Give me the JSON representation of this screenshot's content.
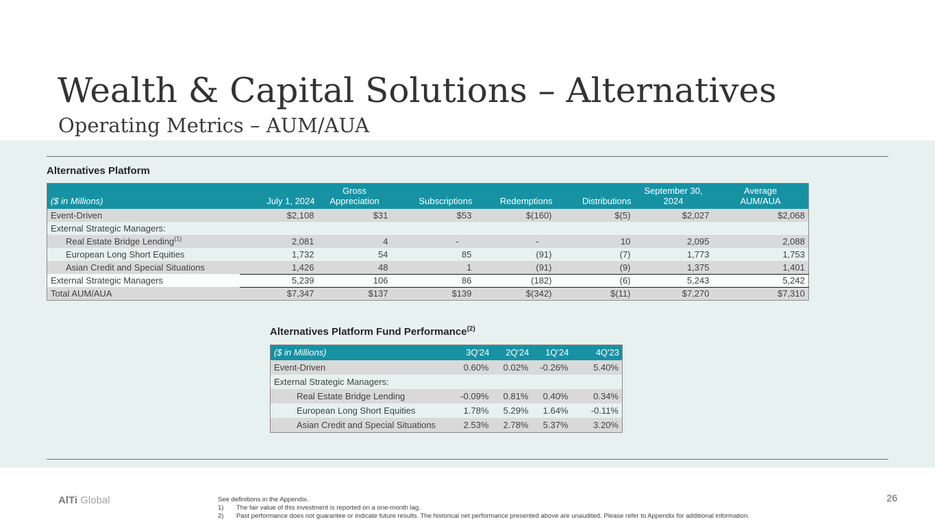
{
  "slide": {
    "title": "Wealth & Capital Solutions – Alternatives",
    "subtitle": "Operating Metrics – AUM/AUA",
    "page_number": "26"
  },
  "colors": {
    "teal": "#1692A3",
    "stripe": "#D9D9D9",
    "mint": "#E7F2F0"
  },
  "table1": {
    "title": "Alternatives Platform",
    "unit_label": "($ in Millions)",
    "columns": [
      {
        "label": "July 1, 2024",
        "align": "right"
      },
      {
        "label": "Gross\nAppreciation",
        "align": "center"
      },
      {
        "label": "Subscriptions",
        "align": "right"
      },
      {
        "label": "Redemptions",
        "align": "right"
      },
      {
        "label": "Distributions",
        "align": "right"
      },
      {
        "label": "September 30,\n2024",
        "align": "center"
      },
      {
        "label": "Average\nAUM/AUA",
        "align": "center"
      }
    ],
    "rows": [
      {
        "label": "Event-Driven",
        "bg": "stripe",
        "values": [
          "$2,108",
          "$31",
          "$53",
          "$(160)",
          "$(5)",
          "$2,027",
          "$2,068"
        ]
      },
      {
        "label": "External Strategic Managers:",
        "bg": "plain",
        "values": []
      },
      {
        "label": "Real Estate Bridge Lending",
        "sup": "(1)",
        "indent": 1,
        "bg": "stripe",
        "values": [
          "2,081",
          "4",
          "-",
          "-",
          "10",
          "2,095",
          "2,088"
        ]
      },
      {
        "label": "European Long Short Equities",
        "indent": 1,
        "bg": "plain",
        "values": [
          "1,732",
          "54",
          "85",
          "(91)",
          "(7)",
          "1,773",
          "1,753"
        ]
      },
      {
        "label": "Asian Credit and Special Situations",
        "indent": 1,
        "bg": "stripe",
        "values": [
          "1,426",
          "48",
          "1",
          "(91)",
          "(9)",
          "1,375",
          "1,401"
        ]
      },
      {
        "label": "External Strategic Managers",
        "bg": "white",
        "rule": true,
        "values": [
          "5,239",
          "106",
          "86",
          "(182)",
          "(6)",
          "5,243",
          "5,242"
        ]
      },
      {
        "label": "Total AUM/AUA",
        "bg": "stripe",
        "rule": true,
        "values": [
          "$7,347",
          "$137",
          "$139",
          "$(342)",
          "$(11)",
          "$7,270",
          "$7,310"
        ]
      }
    ]
  },
  "table2": {
    "title": "Alternatives Platform Fund Performance",
    "title_sup": "(2)",
    "unit_label": "($ in Millions)",
    "columns": [
      {
        "label": "3Q'24",
        "align": "right"
      },
      {
        "label": "2Q'24",
        "align": "right"
      },
      {
        "label": "1Q'24",
        "align": "right"
      },
      {
        "label": "4Q'23",
        "align": "right"
      }
    ],
    "rows": [
      {
        "label": "Event-Driven",
        "bg": "stripe",
        "values": [
          "0.60%",
          "0.02%",
          "-0.26%",
          "5.40%"
        ]
      },
      {
        "label": "External Strategic Managers:",
        "bg": "plain",
        "values": []
      },
      {
        "label": "Real Estate Bridge Lending",
        "indent": 1,
        "bg": "stripe",
        "values": [
          "-0.09%",
          "0.81%",
          "0.40%",
          "0.34%"
        ]
      },
      {
        "label": "European Long Short Equities",
        "indent": 1,
        "bg": "plain",
        "values": [
          "1.78%",
          "5.29%",
          "1.64%",
          "-0.11%"
        ]
      },
      {
        "label": "Asian Credit and Special Situations",
        "indent": 1,
        "bg": "stripe",
        "values": [
          "2.53%",
          "2.78%",
          "5.37%",
          "3.20%"
        ]
      }
    ]
  },
  "footer": {
    "logo_bold": "AlTi",
    "logo_light": " Global",
    "notes": [
      {
        "num": "",
        "text": "See definitions in the Appendix."
      },
      {
        "num": "1)",
        "text": "The fair value of this investment is reported on a one-month lag."
      },
      {
        "num": "2)",
        "text": "Past performance does not guarantee or indicate future results. The historical net performance presented above are unaudited. Please refer to Appendix for additional information."
      }
    ]
  }
}
